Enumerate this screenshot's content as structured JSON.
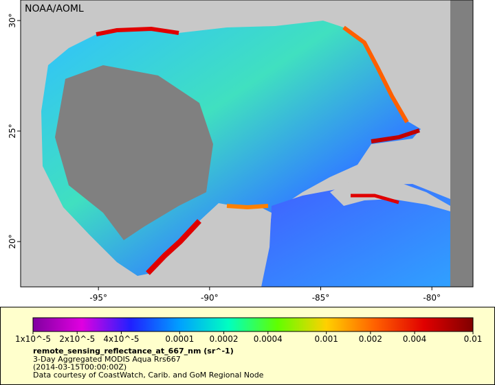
{
  "map": {
    "attribution": "NOAA/AOML",
    "xlim": [
      -98.5,
      -78.15
    ],
    "ylim": [
      17.95,
      30.93
    ],
    "xticks": [
      {
        "value": -95,
        "label": "-95°"
      },
      {
        "value": -90,
        "label": "-90°"
      },
      {
        "value": -85,
        "label": "-85°"
      },
      {
        "value": -80,
        "label": "-80°"
      }
    ],
    "yticks": [
      {
        "value": 30,
        "label": "30°"
      },
      {
        "value": 25,
        "label": "25°"
      },
      {
        "value": 20,
        "label": "20°"
      }
    ]
  },
  "colorbar": {
    "scale": "log",
    "range": [
      1e-05,
      0.01
    ],
    "colors": [
      "#8000a0",
      "#e000e0",
      "#2020ff",
      "#00a0ff",
      "#00ffc0",
      "#60ff00",
      "#ffd000",
      "#ff6000",
      "#e00000",
      "#800000"
    ],
    "ticks": [
      {
        "value": 1e-05,
        "label": "1x10^-5"
      },
      {
        "value": 2e-05,
        "label": "2x10^-5"
      },
      {
        "value": 4e-05,
        "label": "4x10^-5"
      },
      0.0001,
      0.0002,
      0.0004,
      0.001,
      0.002,
      0.004,
      0.01
    ]
  },
  "legend": {
    "variable": "remote_sensing_reflectance_at_667_nm (sr^-1)",
    "lines": [
      "3-Day Aggregated MODIS Aqua Rrs667",
      "(2014-03-15T00:00:00Z)",
      "Data courtesy of CoastWatch, Carib. and GoM Regional Node"
    ]
  }
}
